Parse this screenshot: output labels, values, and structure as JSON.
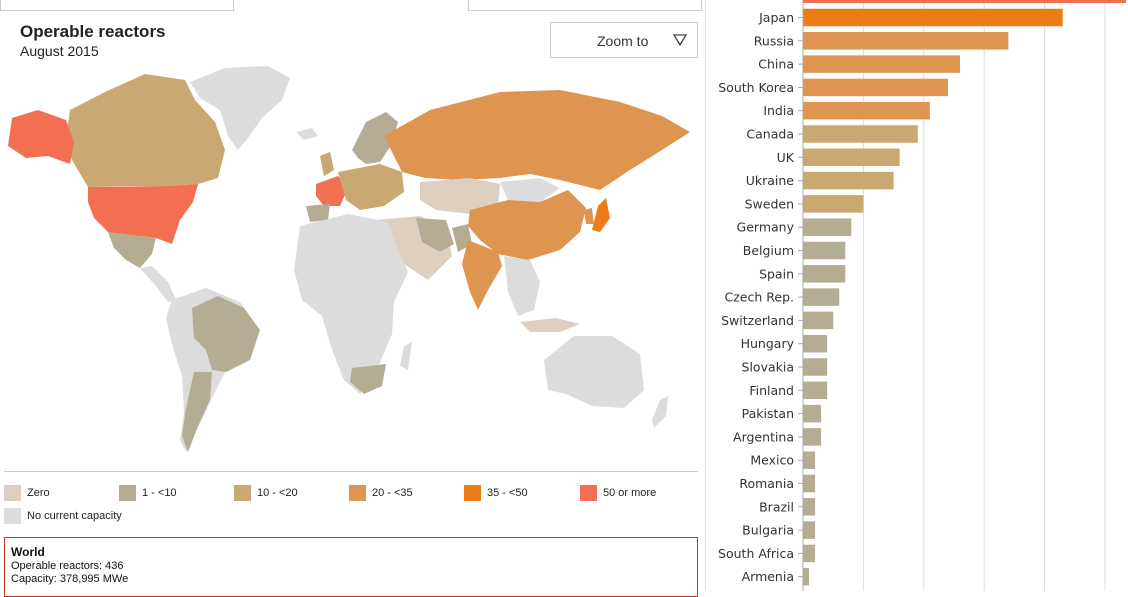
{
  "map_panel": {
    "title": "Operable reactors",
    "subtitle": "August 2015",
    "zoom_label": "Zoom to"
  },
  "legend": [
    {
      "label": "Zero",
      "color": "#ddd0c0"
    },
    {
      "label": "1 - <10",
      "color": "#b4ad94"
    },
    {
      "label": "10 - <20",
      "color": "#c9a872"
    },
    {
      "label": "20 - <35",
      "color": "#dd9550"
    },
    {
      "label": "35 - <50",
      "color": "#ec7d16"
    },
    {
      "label": "50 or more",
      "color": "#f26f52"
    },
    {
      "label": "No current capacity",
      "color": "#dcdcdc"
    }
  ],
  "world_summary": {
    "title": "World",
    "reactors_line": "Operable reactors: 436",
    "capacity_line": "Capacity: 378,995 MWe"
  },
  "chart_data": {
    "type": "bar",
    "orientation": "horizontal",
    "title": "",
    "xlabel": "",
    "ylabel": "",
    "grid": true,
    "xlim": [
      0,
      50
    ],
    "categories": [
      "Japan",
      "Russia",
      "China",
      "South Korea",
      "India",
      "Canada",
      "UK",
      "Ukraine",
      "Sweden",
      "Germany",
      "Belgium",
      "Spain",
      "Czech Rep.",
      "Switzerland",
      "Hungary",
      "Slovakia",
      "Finland",
      "Pakistan",
      "Argentina",
      "Mexico",
      "Romania",
      "Brazil",
      "Bulgaria",
      "South Africa",
      "Armenia"
    ],
    "values": [
      43,
      34,
      26,
      24,
      21,
      19,
      16,
      15,
      10,
      8,
      7,
      7,
      6,
      5,
      4,
      4,
      4,
      3,
      3,
      2,
      2,
      2,
      2,
      2,
      1
    ],
    "colors": [
      "#ec7d16",
      "#dd9550",
      "#dd9550",
      "#dd9550",
      "#dd9550",
      "#c9a872",
      "#c9a872",
      "#c9a872",
      "#c9a872",
      "#b4ad94",
      "#b4ad94",
      "#b4ad94",
      "#b4ad94",
      "#b4ad94",
      "#b4ad94",
      "#b4ad94",
      "#b4ad94",
      "#b4ad94",
      "#b4ad94",
      "#b4ad94",
      "#b4ad94",
      "#b4ad94",
      "#b4ad94",
      "#b4ad94",
      "#b4ad94"
    ],
    "partial_top_bar": {
      "value": 58,
      "color": "#f26f52"
    }
  }
}
